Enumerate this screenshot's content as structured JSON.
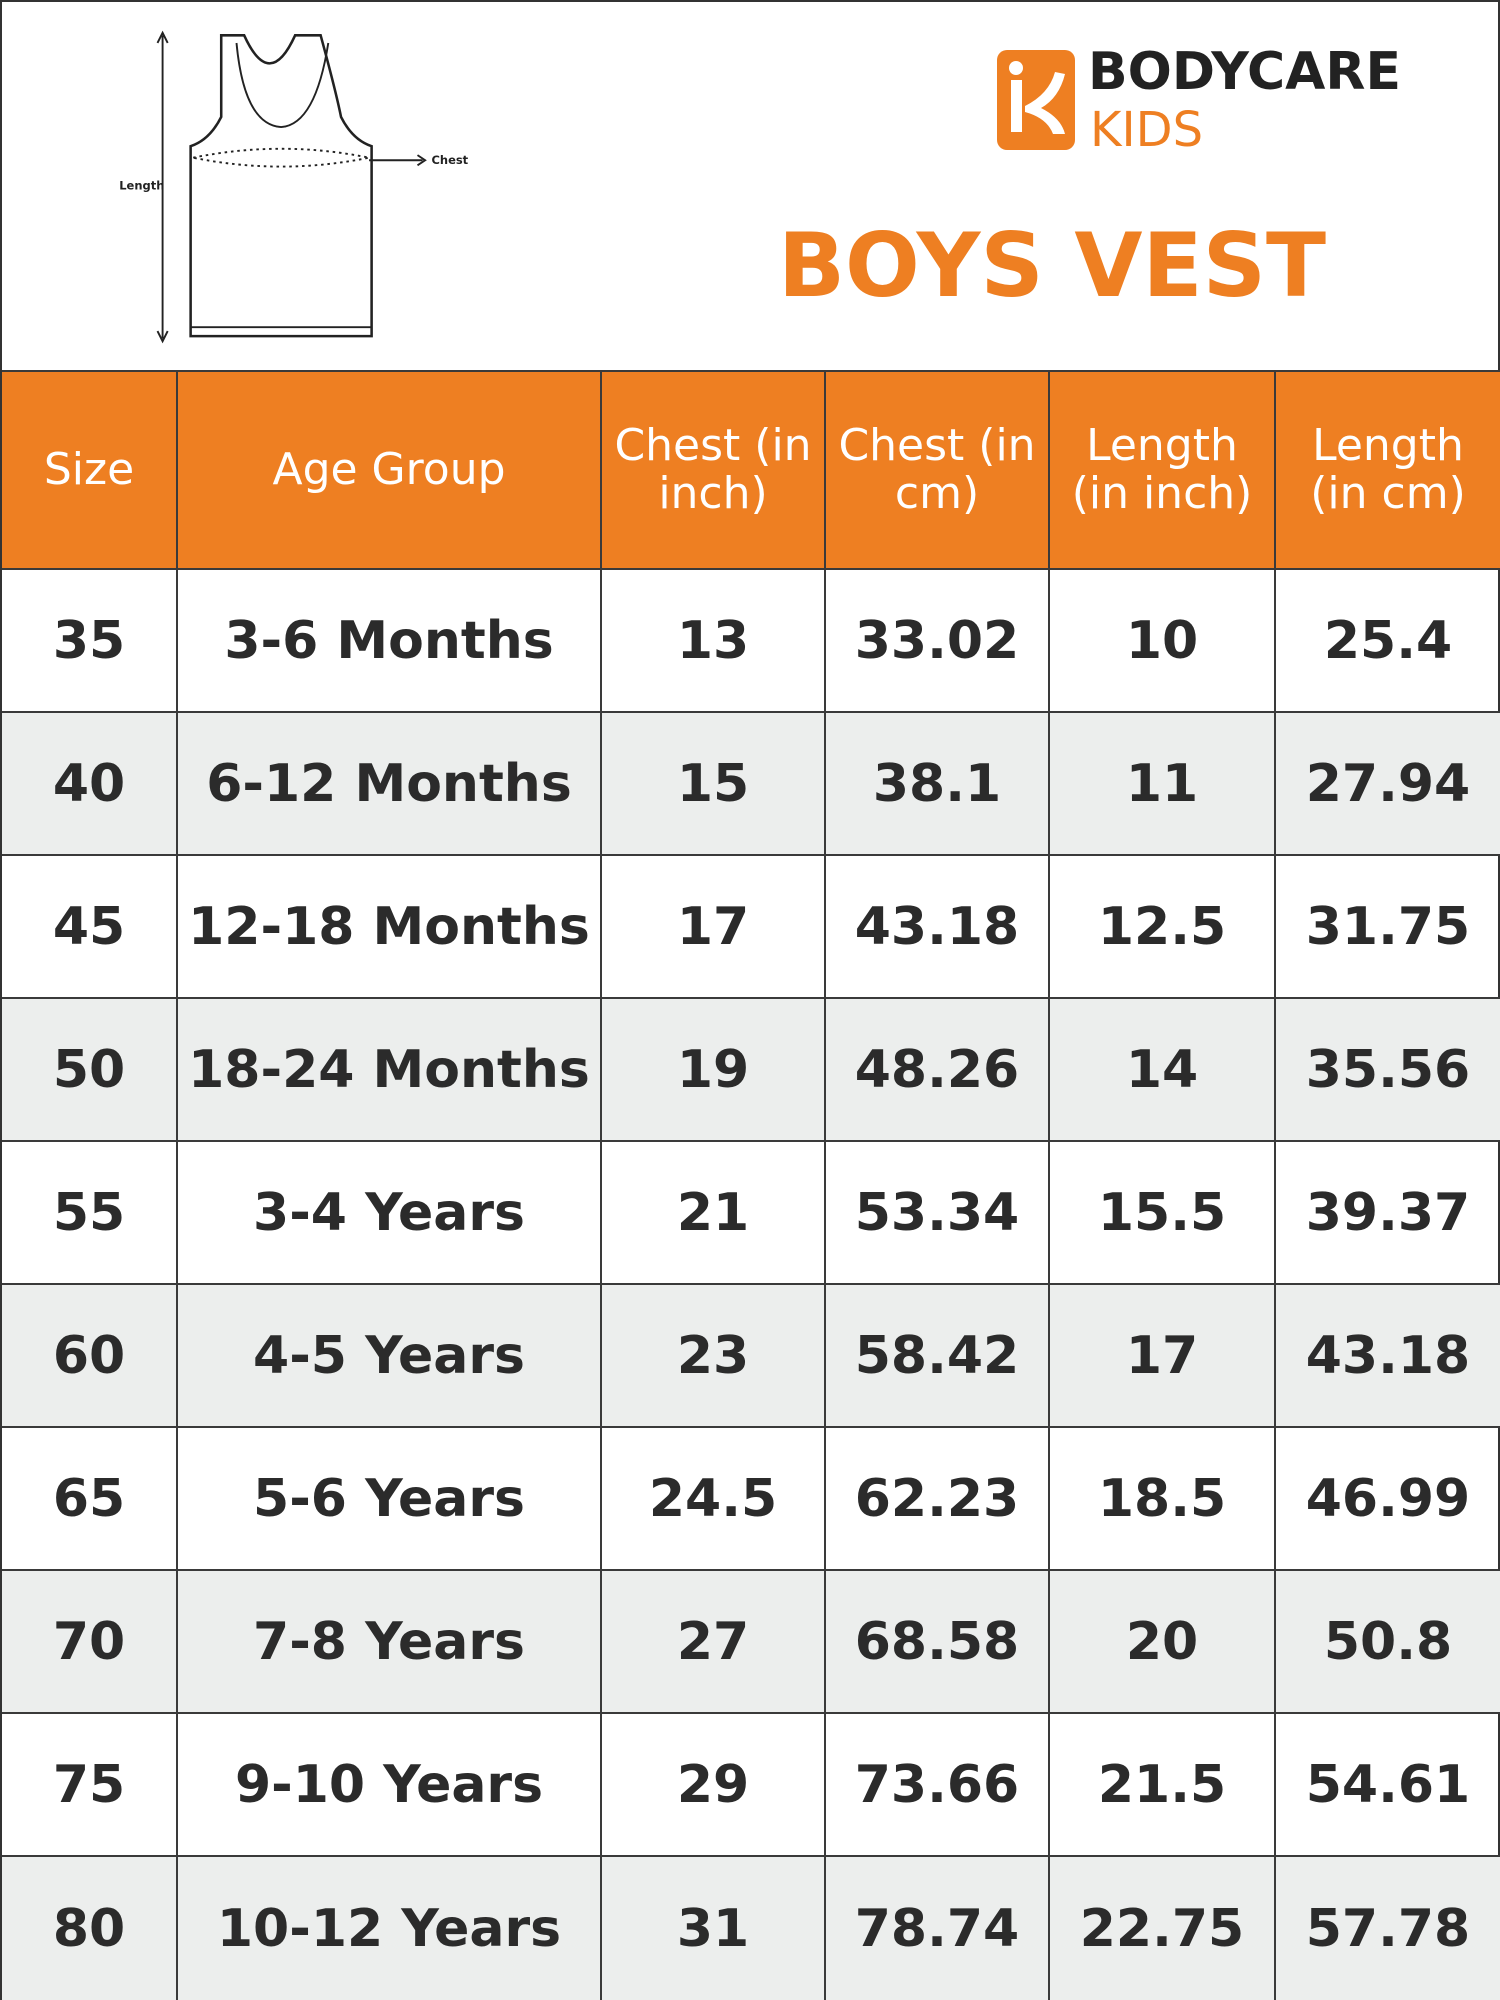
{
  "header": {
    "brand": "BODYCARE",
    "sub_brand": "KIDS",
    "title": "BOYS VEST",
    "diagram": {
      "length_label": "Length",
      "chest_label": "Chest"
    }
  },
  "table": {
    "columns": [
      "Size",
      "Age Group",
      "Chest (in inch)",
      "Chest (in cm)",
      "Length (in inch)",
      "Length (in cm)"
    ],
    "rows": [
      [
        "35",
        "3-6 Months",
        "13",
        "33.02",
        "10",
        "25.4"
      ],
      [
        "40",
        "6-12 Months",
        "15",
        "38.1",
        "11",
        "27.94"
      ],
      [
        "45",
        "12-18 Months",
        "17",
        "43.18",
        "12.5",
        "31.75"
      ],
      [
        "50",
        "18-24 Months",
        "19",
        "48.26",
        "14",
        "35.56"
      ],
      [
        "55",
        "3-4 Years",
        "21",
        "53.34",
        "15.5",
        "39.37"
      ],
      [
        "60",
        "4-5 Years",
        "23",
        "58.42",
        "17",
        "43.18"
      ],
      [
        "65",
        "5-6 Years",
        "24.5",
        "62.23",
        "18.5",
        "46.99"
      ],
      [
        "70",
        "7-8 Years",
        "27",
        "68.58",
        "20",
        "50.8"
      ],
      [
        "75",
        "9-10 Years",
        "29",
        "73.66",
        "21.5",
        "54.61"
      ],
      [
        "80",
        "10-12 Years",
        "31",
        "78.74",
        "22.75",
        "57.78"
      ]
    ]
  }
}
